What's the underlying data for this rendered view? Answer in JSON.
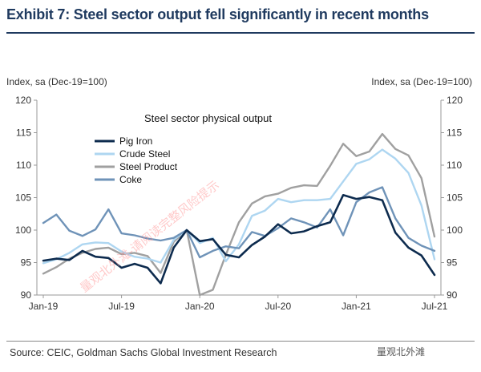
{
  "title": "Exhibit 7: Steel sector output fell significantly in recent months",
  "source": "Source: CEIC, Goldman Sachs Global Investment Research",
  "logo_text": "量观北外滩",
  "watermark": "量观北外滩-请阅读完整风险提示",
  "chart_data": {
    "type": "line",
    "title": "Steel sector physical output",
    "ylabel_left": "Index, sa (Dec-19=100)",
    "ylabel_right": "Index, sa (Dec-19=100)",
    "ylim": [
      90,
      120
    ],
    "yticks": [
      90,
      95,
      100,
      105,
      110,
      115,
      120
    ],
    "x": [
      "Jan-19",
      "Feb-19",
      "Mar-19",
      "Apr-19",
      "May-19",
      "Jun-19",
      "Jul-19",
      "Aug-19",
      "Sep-19",
      "Oct-19",
      "Nov-19",
      "Dec-19",
      "Jan-20",
      "Feb-20",
      "Mar-20",
      "Apr-20",
      "May-20",
      "Jun-20",
      "Jul-20",
      "Aug-20",
      "Sep-20",
      "Oct-20",
      "Nov-20",
      "Dec-20",
      "Jan-21",
      "Feb-21",
      "Mar-21",
      "Apr-21",
      "May-21",
      "Jun-21",
      "Jul-21"
    ],
    "xtick_labels": [
      "Jan-19",
      "Jul-19",
      "Jan-20",
      "Jul-20",
      "Jan-21",
      "Jul-21"
    ],
    "xtick_index": [
      0,
      6,
      12,
      18,
      24,
      30
    ],
    "grid": false,
    "legend_position": "top-left",
    "series": [
      {
        "name": "Pig Iron",
        "color": "#0d2b4e",
        "values": [
          95.3,
          95.6,
          95.4,
          96.8,
          95.9,
          95.7,
          94.2,
          94.8,
          94.2,
          91.8,
          97.3,
          100.0,
          98.3,
          98.6,
          96.2,
          95.8,
          97.7,
          99.0,
          100.9,
          99.5,
          99.8,
          100.6,
          101.2,
          105.4,
          104.8,
          105.1,
          104.6,
          99.6,
          97.3,
          96.1,
          93.1
        ]
      },
      {
        "name": "Crude Steel",
        "color": "#aed6f1",
        "values": [
          94.9,
          95.5,
          96.5,
          97.8,
          98.1,
          98.0,
          96.7,
          95.9,
          95.6,
          95.0,
          98.5,
          100.0,
          98.0,
          98.8,
          95.2,
          97.8,
          102.2,
          103.0,
          104.8,
          104.3,
          104.6,
          104.6,
          104.8,
          107.5,
          110.2,
          110.9,
          112.4,
          111.0,
          108.8,
          103.8,
          95.5
        ]
      },
      {
        "name": "Steel Product",
        "color": "#a0a0a0",
        "values": [
          93.3,
          94.3,
          95.6,
          96.5,
          97.1,
          97.3,
          96.3,
          96.5,
          96.0,
          93.4,
          98.2,
          100.0,
          90.0,
          90.8,
          96.2,
          101.2,
          104.1,
          105.2,
          105.6,
          106.5,
          106.9,
          106.8,
          109.9,
          113.3,
          111.4,
          112.1,
          114.8,
          112.5,
          111.5,
          108.0,
          99.0
        ]
      },
      {
        "name": "Coke",
        "color": "#6f93b8",
        "values": [
          101.1,
          102.4,
          99.9,
          99.1,
          100.1,
          103.2,
          99.5,
          99.2,
          98.7,
          98.4,
          98.8,
          100.0,
          95.8,
          96.8,
          97.5,
          97.2,
          99.7,
          99.1,
          100.3,
          101.8,
          101.2,
          100.4,
          103.2,
          99.2,
          104.3,
          105.8,
          106.6,
          101.8,
          98.8,
          97.6,
          96.8
        ]
      }
    ]
  }
}
